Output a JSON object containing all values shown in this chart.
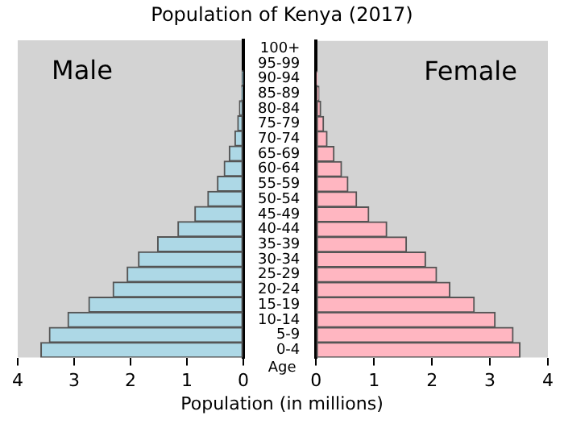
{
  "chart_data": [
    {
      "type": "bar",
      "orientation": "horizontal",
      "title": "Population of Kenya (2017)",
      "tick_labels": "x",
      "categories": [
        "100+",
        "95-99",
        "90-94",
        "85-89",
        "80-84",
        "75-79",
        "70-74",
        "65-69",
        "60-64",
        "55-59",
        "50-54",
        "45-49",
        "40-44",
        "35-39",
        "30-34",
        "25-29",
        "20-24",
        "15-19",
        "10-14",
        "5-9",
        "0-4"
      ],
      "series": [
        {
          "name": "Male",
          "color": "#add8e6",
          "values": [
            0,
            0,
            0.01,
            0.03,
            0.07,
            0.1,
            0.15,
            0.25,
            0.34,
            0.46,
            0.63,
            0.86,
            1.16,
            1.52,
            1.86,
            2.06,
            2.31,
            2.74,
            3.11,
            3.44,
            3.59
          ]
        }
      ],
      "xlim": [
        4,
        0
      ],
      "xticks": [
        0,
        1,
        2,
        3,
        4
      ]
    },
    {
      "type": "bar",
      "orientation": "horizontal",
      "xlabel": "Population (in millions)",
      "ylabel": "Age",
      "categories": [
        "100+",
        "95-99",
        "90-94",
        "85-89",
        "80-84",
        "75-79",
        "70-74",
        "65-69",
        "60-64",
        "55-59",
        "50-54",
        "45-49",
        "40-44",
        "35-39",
        "30-34",
        "25-29",
        "20-24",
        "15-19",
        "10-14",
        "5-9",
        "0-4"
      ],
      "series": [
        {
          "name": "Female",
          "color": "#ffb6c1",
          "values": [
            0,
            0,
            0.02,
            0.05,
            0.08,
            0.13,
            0.19,
            0.31,
            0.44,
            0.55,
            0.7,
            0.91,
            1.22,
            1.56,
            1.89,
            2.08,
            2.31,
            2.73,
            3.09,
            3.4,
            3.52
          ]
        }
      ],
      "xlim": [
        0,
        4
      ],
      "xticks": [
        0,
        1,
        2,
        3,
        4
      ]
    }
  ]
}
